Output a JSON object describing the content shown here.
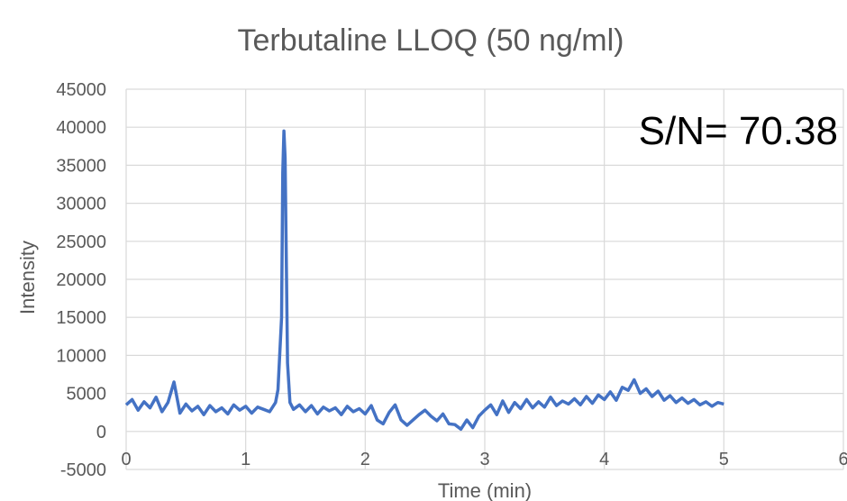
{
  "chart_data": {
    "type": "line",
    "title": "Terbutaline LLOQ (50 ng/ml)",
    "xlabel": "Time (min)",
    "ylabel": "Intensity",
    "xlim": [
      0,
      6
    ],
    "ylim": [
      -5000,
      45000
    ],
    "x_ticks": [
      0,
      1,
      2,
      3,
      4,
      5,
      6
    ],
    "y_ticks": [
      -5000,
      0,
      5000,
      10000,
      15000,
      20000,
      25000,
      30000,
      35000,
      40000,
      45000
    ],
    "grid": true,
    "annotation": "S/N= 70.38",
    "series_color": "#4472C4",
    "series": [
      {
        "x": [
          0.0,
          0.05,
          0.1,
          0.15,
          0.2,
          0.25,
          0.3,
          0.35,
          0.4,
          0.45,
          0.5,
          0.55,
          0.6,
          0.65,
          0.7,
          0.75,
          0.8,
          0.85,
          0.9,
          0.95,
          1.0,
          1.05,
          1.1,
          1.15,
          1.2,
          1.25,
          1.27,
          1.3,
          1.31,
          1.32,
          1.33,
          1.34,
          1.35,
          1.37,
          1.4,
          1.45,
          1.5,
          1.55,
          1.6,
          1.65,
          1.7,
          1.75,
          1.8,
          1.85,
          1.9,
          1.95,
          2.0,
          2.05,
          2.1,
          2.15,
          2.2,
          2.25,
          2.3,
          2.35,
          2.4,
          2.45,
          2.5,
          2.55,
          2.6,
          2.65,
          2.7,
          2.75,
          2.8,
          2.85,
          2.9,
          2.95,
          3.0,
          3.05,
          3.1,
          3.15,
          3.2,
          3.25,
          3.3,
          3.35,
          3.4,
          3.45,
          3.5,
          3.55,
          3.6,
          3.65,
          3.7,
          3.75,
          3.8,
          3.85,
          3.9,
          3.95,
          4.0,
          4.05,
          4.1,
          4.15,
          4.2,
          4.25,
          4.3,
          4.35,
          4.4,
          4.45,
          4.5,
          4.55,
          4.6,
          4.65,
          4.7,
          4.75,
          4.8,
          4.85,
          4.9,
          4.95,
          5.0
        ],
        "values": [
          3500,
          4200,
          2800,
          3900,
          3100,
          4500,
          2600,
          3800,
          6500,
          2400,
          3600,
          2700,
          3300,
          2200,
          3400,
          2600,
          3100,
          2300,
          3500,
          2800,
          3300,
          2400,
          3200,
          2900,
          2600,
          3800,
          5500,
          15000,
          34000,
          39500,
          36000,
          22000,
          9000,
          3800,
          2900,
          3500,
          2600,
          3400,
          2300,
          3200,
          2700,
          3100,
          2200,
          3300,
          2600,
          3000,
          2300,
          3400,
          1500,
          1000,
          2500,
          3500,
          1500,
          800,
          1500,
          2200,
          2800,
          2000,
          1400,
          2300,
          1000,
          900,
          300,
          1500,
          500,
          2000,
          2800,
          3500,
          2200,
          4000,
          2500,
          3800,
          3000,
          4200,
          3100,
          3900,
          3200,
          4500,
          3400,
          4000,
          3600,
          4300,
          3500,
          4600,
          3700,
          4800,
          4200,
          5200,
          4100,
          5800,
          5400,
          6800,
          5000,
          5600,
          4600,
          5300,
          4100,
          4700,
          3800,
          4400,
          3700,
          4200,
          3500,
          3900,
          3300,
          3800,
          3600
        ]
      }
    ]
  }
}
